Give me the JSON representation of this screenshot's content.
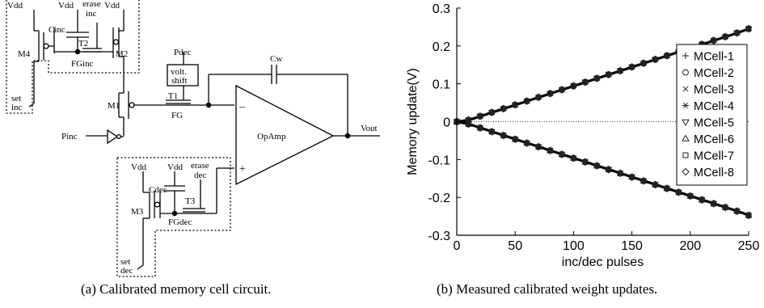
{
  "circuit": {
    "labels": {
      "vdd": "Vdd",
      "erase_inc": [
        "erase",
        "inc"
      ],
      "erase_dec": [
        "erase",
        "dec"
      ],
      "set_inc": [
        "set",
        "inc"
      ],
      "set_dec": [
        "set",
        "dec"
      ],
      "cinc": "Cinc",
      "cdec": "Cdec",
      "cw": "Cw",
      "t1": "T1",
      "t2": "T2",
      "t3": "T3",
      "m1": "M1",
      "m2": "M2",
      "m3": "M3",
      "m4": "M4",
      "fg": "FG",
      "fginc": "FGinc",
      "fgdec": "FGdec",
      "pdec": "Pdec",
      "pinc": "Pinc",
      "volt_shift": [
        "volt.",
        "shift"
      ],
      "opamp": "OpAmp",
      "vout": "Vout",
      "minus": "–",
      "plus": "+"
    }
  },
  "captions": {
    "a": "(a) Calibrated memory cell circuit.",
    "b": "(b) Measured calibrated weight updates."
  },
  "chart_data": {
    "type": "scatter",
    "xlabel": "inc/dec pulses",
    "ylabel": "Memory update(V)",
    "xlim": [
      0,
      250
    ],
    "ylim": [
      -0.3,
      0.3
    ],
    "xticks": [
      0,
      50,
      100,
      150,
      200,
      250
    ],
    "yticks": [
      0.3,
      0.2,
      0.1,
      0,
      -0.1,
      -0.2,
      -0.3
    ],
    "ytick_labels": [
      "0.3",
      "0.2",
      "0.1",
      "0",
      "-0.1",
      "-0.2",
      "-0.3"
    ],
    "zero_line": "dotted",
    "legend_position": "right",
    "series": [
      {
        "name": "MCell-1",
        "marker": "plus"
      },
      {
        "name": "MCell-2",
        "marker": "circle"
      },
      {
        "name": "MCell-3",
        "marker": "cross"
      },
      {
        "name": "MCell-4",
        "marker": "asterisk"
      },
      {
        "name": "MCell-5",
        "marker": "triangle-down"
      },
      {
        "name": "MCell-6",
        "marker": "triangle-up"
      },
      {
        "name": "MCell-7",
        "marker": "square"
      },
      {
        "name": "MCell-8",
        "marker": "diamond"
      }
    ],
    "x": [
      0,
      10,
      20,
      30,
      40,
      50,
      60,
      70,
      80,
      90,
      100,
      110,
      120,
      130,
      140,
      150,
      160,
      170,
      180,
      190,
      200,
      210,
      220,
      230,
      240,
      250
    ],
    "increase_trend": [
      0,
      0.004,
      0.014,
      0.024,
      0.034,
      0.044,
      0.054,
      0.064,
      0.074,
      0.084,
      0.094,
      0.104,
      0.114,
      0.124,
      0.134,
      0.144,
      0.154,
      0.164,
      0.174,
      0.184,
      0.194,
      0.204,
      0.214,
      0.224,
      0.234,
      0.245
    ],
    "decrease_trend": [
      0,
      -0.006,
      -0.016,
      -0.026,
      -0.036,
      -0.046,
      -0.056,
      -0.066,
      -0.076,
      -0.086,
      -0.096,
      -0.106,
      -0.116,
      -0.126,
      -0.136,
      -0.146,
      -0.156,
      -0.166,
      -0.176,
      -0.186,
      -0.196,
      -0.206,
      -0.216,
      -0.226,
      -0.236,
      -0.247
    ]
  }
}
